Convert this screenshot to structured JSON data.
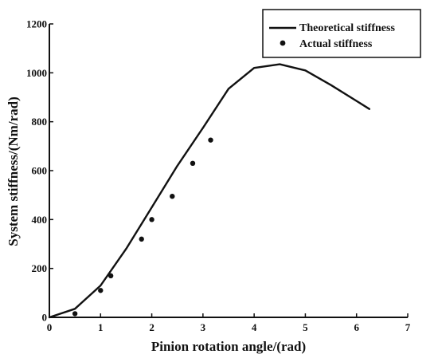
{
  "chart_data": {
    "type": "line",
    "title": "",
    "xlabel": "Pinion rotation angle/(rad)",
    "ylabel": "System stiffness/(Nm/rad)",
    "xlim": [
      0,
      7
    ],
    "ylim": [
      0,
      1200
    ],
    "xticks": [
      0,
      1,
      2,
      3,
      4,
      5,
      6,
      7
    ],
    "yticks": [
      0,
      200,
      400,
      600,
      800,
      1000,
      1200
    ],
    "grid": false,
    "legend_position": "top-right",
    "series": [
      {
        "name": "Theoretical stiffness",
        "kind": "line",
        "color": "#111111",
        "points": [
          [
            0.0,
            0
          ],
          [
            0.5,
            35
          ],
          [
            1.0,
            130
          ],
          [
            1.5,
            280
          ],
          [
            2.0,
            450
          ],
          [
            2.5,
            620
          ],
          [
            3.0,
            775
          ],
          [
            3.5,
            935
          ],
          [
            4.0,
            1020
          ],
          [
            4.5,
            1035
          ],
          [
            5.0,
            1010
          ],
          [
            5.5,
            950
          ],
          [
            6.0,
            885
          ],
          [
            6.25,
            852
          ]
        ]
      },
      {
        "name": "Actual stiffness",
        "kind": "scatter",
        "color": "#111111",
        "points": [
          [
            0.5,
            15
          ],
          [
            1.0,
            110
          ],
          [
            1.2,
            170
          ],
          [
            1.8,
            320
          ],
          [
            2.0,
            400
          ],
          [
            2.4,
            495
          ],
          [
            2.8,
            630
          ],
          [
            3.15,
            725
          ]
        ]
      }
    ]
  }
}
